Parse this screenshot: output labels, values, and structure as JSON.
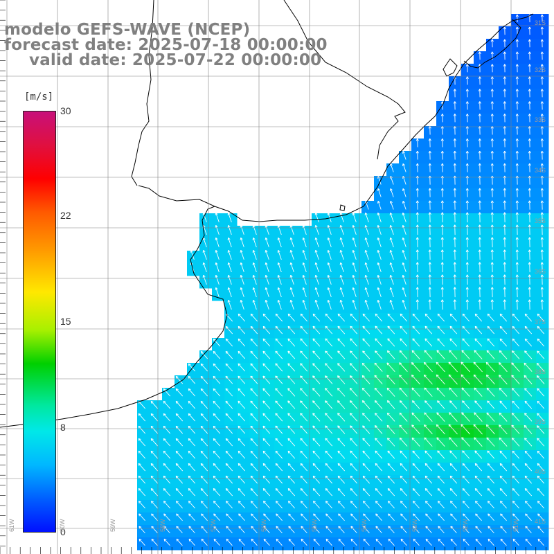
{
  "title": {
    "line1": "modelo GEFS-WAVE (NCEP)",
    "line2": "forecast date: 2025-07-18 00:00:00",
    "line3": "valid date: 2025-07-22 00:00:00"
  },
  "colorbar": {
    "units": "[m/s]",
    "ticks": [
      "30",
      "22",
      "15",
      "8",
      "0"
    ],
    "min": 0,
    "max": 30
  },
  "lat_labels": [
    "31S",
    "32S",
    "33S",
    "34S",
    "35S",
    "36S",
    "37S",
    "38S",
    "39S",
    "40S",
    "41S"
  ],
  "lon_labels": [
    "61W",
    "60W",
    "59W",
    "58W",
    "57W",
    "56W",
    "55W",
    "54W",
    "53W",
    "52W",
    "51W"
  ],
  "colors": {
    "land": "#ffffff",
    "coast": "#000000",
    "grid": "#808080",
    "arrow": "#ffffff",
    "low_wind": "#1060f0",
    "mid_wind": "#00c8ff",
    "high_wind": "#20e870"
  }
}
